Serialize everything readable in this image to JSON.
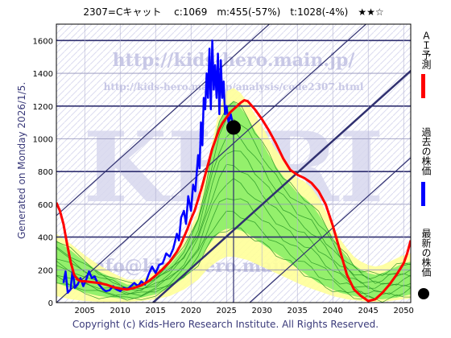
{
  "header": {
    "title": "2307=Cキャット　 c:1069　m:455(-57%)　t:1028(-4%)　★★☆"
  },
  "side_label": "Generated on Monday 2026/1/5.",
  "footer": {
    "copyright": "Copyright (c) Kids-Hero Research Institute. All Rights Reserved."
  },
  "watermark": {
    "url": "http://kids-hero.main.jp/",
    "analysis_url": "http://kids-hero.main.jp/analysis/code2307.html",
    "logo": "KHRI",
    "email": "info@kids-hero.main.jp"
  },
  "legend": {
    "ai_forecast": "ＡＩ予測",
    "past_price": "過去の株価",
    "latest_price": "最新の株価"
  },
  "colors": {
    "ai_forecast": "#ff0000",
    "past_price": "#0000ff",
    "latest_price": "#000000",
    "band_outer": "#ffff99",
    "band_inner": "#88ee66",
    "band_line": "#209020",
    "grid_main": "#303070",
    "plot_bg": "#ffffff",
    "hatch": "#dcdcf0"
  },
  "chart_data": {
    "type": "line",
    "xlim": [
      2001,
      2051
    ],
    "ylim": [
      0,
      1700
    ],
    "xticks": [
      2005,
      2010,
      2015,
      2020,
      2025,
      2030,
      2035,
      2040,
      2045,
      2050
    ],
    "yticks": [
      0,
      200,
      400,
      600,
      800,
      1000,
      1200,
      1400,
      1600
    ],
    "grid": true,
    "latest": {
      "x": 2026.0,
      "y": 1069
    },
    "series": [
      {
        "name": "past_price",
        "x": [
          2002.0,
          2002.3,
          2002.6,
          2003.0,
          2003.3,
          2003.6,
          2004.0,
          2004.4,
          2004.8,
          2005.2,
          2005.6,
          2006.0,
          2006.4,
          2006.8,
          2007.2,
          2007.6,
          2008.0,
          2008.5,
          2009.0,
          2009.5,
          2010.0,
          2010.5,
          2011.0,
          2011.5,
          2012.0,
          2012.5,
          2013.0,
          2013.5,
          2014.0,
          2014.5,
          2015.0,
          2015.5,
          2016.0,
          2016.5,
          2017.0,
          2017.5,
          2018.0,
          2018.3,
          2018.6,
          2019.0,
          2019.3,
          2019.6,
          2020.0,
          2020.3,
          2020.6,
          2021.0,
          2021.2,
          2021.4,
          2021.6,
          2021.8,
          2022.0,
          2022.2,
          2022.4,
          2022.6,
          2022.8,
          2023.0,
          2023.2,
          2023.4,
          2023.6,
          2023.8,
          2024.0,
          2024.2,
          2024.4,
          2024.6,
          2024.8,
          2025.0,
          2025.3,
          2025.6,
          2026.0
        ],
        "y": [
          120,
          190,
          60,
          80,
          200,
          90,
          110,
          150,
          100,
          140,
          190,
          150,
          160,
          120,
          100,
          80,
          70,
          75,
          100,
          80,
          70,
          90,
          80,
          100,
          120,
          100,
          130,
          110,
          170,
          220,
          180,
          230,
          240,
          300,
          280,
          330,
          420,
          380,
          520,
          560,
          480,
          650,
          560,
          720,
          680,
          900,
          820,
          1100,
          960,
          1250,
          1180,
          1400,
          1250,
          1550,
          1180,
          1600,
          1300,
          1450,
          1250,
          1520,
          1150,
          1480,
          1250,
          1350,
          1150,
          1200,
          1100,
          1150,
          1069
        ]
      },
      {
        "name": "ai_forecast",
        "x": [
          2001.0,
          2001.5,
          2002.0,
          2002.5,
          2003.0,
          2003.5,
          2004.0,
          2004.5,
          2005.0,
          2006.0,
          2007.0,
          2008.0,
          2009.0,
          2010.0,
          2011.0,
          2012.0,
          2013.0,
          2014.0,
          2015.0,
          2016.0,
          2017.0,
          2018.0,
          2018.5,
          2019.0,
          2019.5,
          2020.0,
          2020.5,
          2021.0,
          2021.5,
          2022.0,
          2022.5,
          2023.0,
          2023.5,
          2024.0,
          2024.5,
          2025.0,
          2025.5,
          2026.0,
          2026.5,
          2027.0,
          2027.5,
          2028.0,
          2029.0,
          2030.0,
          2031.0,
          2032.0,
          2033.0,
          2034.0,
          2035.0,
          2036.0,
          2037.0,
          2038.0,
          2039.0,
          2040.0,
          2041.0,
          2042.0,
          2043.0,
          2044.0,
          2045.0,
          2046.0,
          2047.0,
          2048.0,
          2049.0,
          2050.0,
          2050.5,
          2051.0
        ],
        "y": [
          610,
          560,
          480,
          360,
          250,
          170,
          140,
          130,
          130,
          125,
          120,
          110,
          95,
          85,
          80,
          90,
          105,
          130,
          165,
          205,
          250,
          310,
          350,
          400,
          450,
          510,
          560,
          630,
          700,
          780,
          860,
          940,
          1000,
          1060,
          1100,
          1130,
          1160,
          1180,
          1200,
          1220,
          1235,
          1230,
          1180,
          1120,
          1050,
          970,
          880,
          810,
          780,
          760,
          730,
          680,
          600,
          470,
          320,
          170,
          80,
          40,
          10,
          20,
          60,
          110,
          170,
          240,
          300,
          380
        ]
      }
    ],
    "band": {
      "x": [
        2001,
        2003,
        2005,
        2007,
        2009,
        2011,
        2013,
        2015,
        2017,
        2019,
        2021,
        2022,
        2023,
        2024,
        2025,
        2026,
        2027,
        2028,
        2029,
        2030,
        2031,
        2032,
        2033,
        2034,
        2035,
        2036,
        2037,
        2038,
        2039,
        2040,
        2041,
        2042,
        2043,
        2044,
        2045,
        2046,
        2047,
        2048,
        2049,
        2050,
        2051
      ],
      "upper": [
        420,
        360,
        290,
        230,
        180,
        140,
        140,
        190,
        260,
        370,
        560,
        760,
        980,
        1180,
        1290,
        1310,
        1280,
        1220,
        1150,
        1080,
        1000,
        930,
        870,
        810,
        760,
        740,
        700,
        640,
        560,
        470,
        390,
        330,
        280,
        250,
        230,
        220,
        230,
        250,
        270,
        290,
        300
      ],
      "inner_upper": [
        380,
        320,
        250,
        190,
        150,
        110,
        110,
        160,
        230,
        330,
        520,
        700,
        920,
        1100,
        1200,
        1230,
        1190,
        1130,
        1050,
        980,
        900,
        830,
        770,
        720,
        670,
        640,
        600,
        540,
        470,
        400,
        330,
        280,
        230,
        200,
        180,
        170,
        180,
        200,
        220,
        240,
        250
      ],
      "inner_lower": [
        120,
        90,
        60,
        40,
        30,
        20,
        30,
        50,
        90,
        150,
        240,
        320,
        380,
        430,
        450,
        450,
        440,
        420,
        390,
        360,
        330,
        300,
        270,
        240,
        210,
        180,
        150,
        120,
        100,
        80,
        60,
        50,
        40,
        30,
        25,
        20,
        20,
        25,
        30,
        40,
        50
      ],
      "lower": [
        40,
        20,
        10,
        5,
        5,
        5,
        10,
        20,
        40,
        80,
        140,
        190,
        230,
        260,
        280,
        280,
        270,
        260,
        240,
        220,
        200,
        180,
        160,
        140,
        120,
        100,
        85,
        70,
        55,
        40,
        30,
        20,
        15,
        10,
        5,
        5,
        5,
        10,
        15,
        20,
        25
      ]
    }
  }
}
